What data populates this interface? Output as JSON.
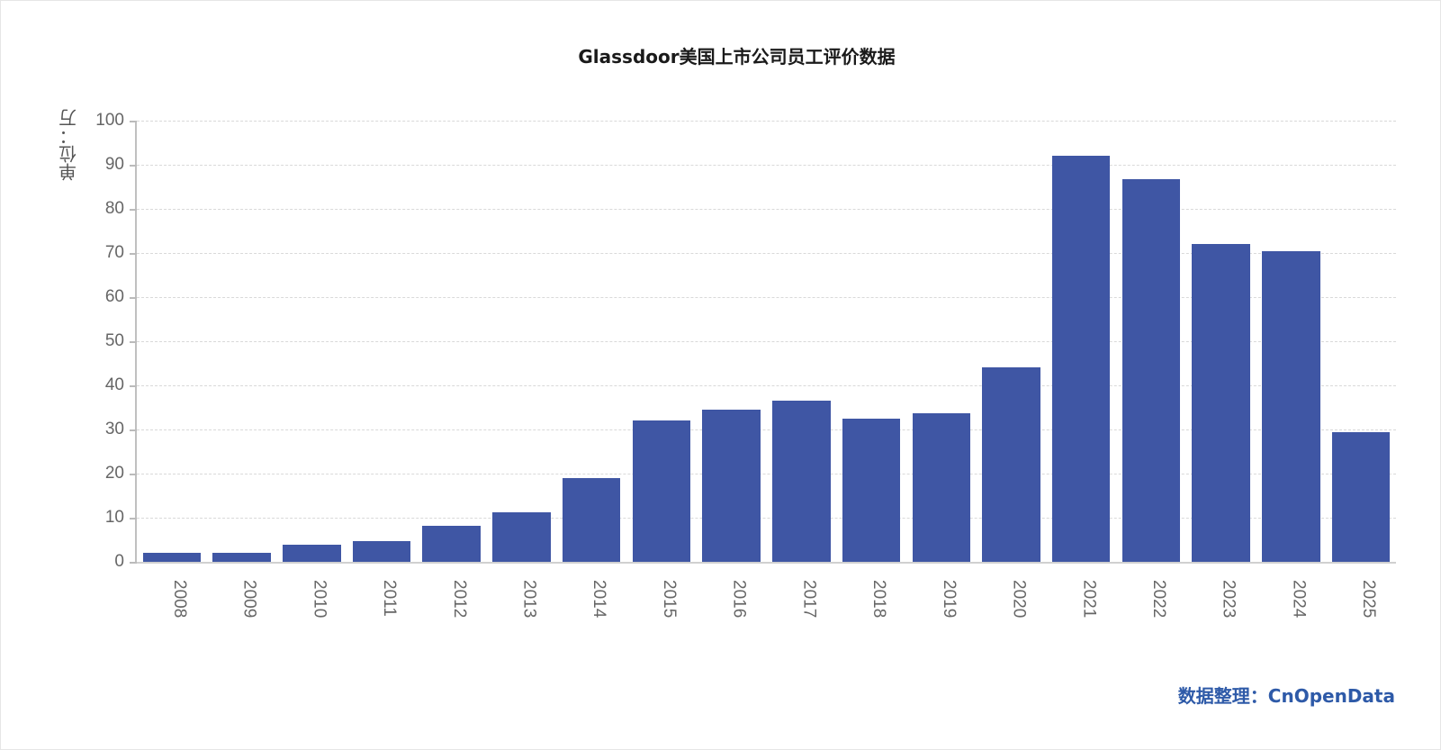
{
  "chart_data": {
    "type": "bar",
    "title": "Glassdoor美国上市公司员工评价数据",
    "ylabel": "单位：万",
    "xlabel": "",
    "ylim": [
      0,
      100
    ],
    "yticks": [
      0,
      10,
      20,
      30,
      40,
      50,
      60,
      70,
      80,
      90,
      100
    ],
    "grid": true,
    "legend": null,
    "bar_color": "#3f56a4",
    "categories": [
      "2008",
      "2009",
      "2010",
      "2011",
      "2012",
      "2013",
      "2014",
      "2015",
      "2016",
      "2017",
      "2018",
      "2019",
      "2020",
      "2021",
      "2022",
      "2023",
      "2024",
      "2025"
    ],
    "values": [
      2.0,
      2.0,
      3.9,
      4.6,
      8.1,
      11.2,
      18.9,
      32.0,
      34.4,
      36.5,
      32.4,
      33.6,
      44.0,
      92.0,
      86.8,
      72.1,
      70.5,
      29.3
    ],
    "annotation": "数据整理：CnOpenData"
  },
  "header": {
    "title": "Glassdoor美国上市公司员工评价数据"
  },
  "axis": {
    "y_label": "单位：万"
  },
  "footer": {
    "source": "数据整理：CnOpenData"
  }
}
